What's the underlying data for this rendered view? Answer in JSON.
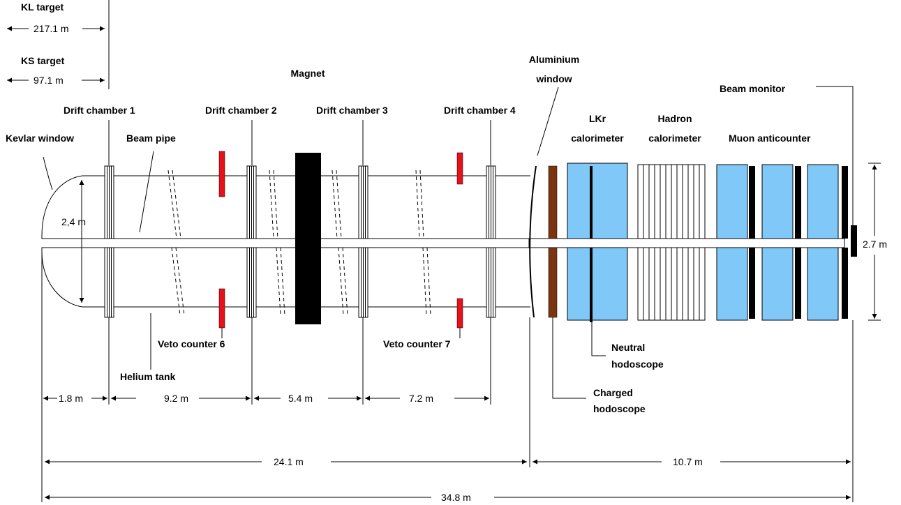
{
  "labels": {
    "kl_target": "KL target",
    "kl_distance": "217.1 m",
    "ks_target": "KS target",
    "ks_distance": "97.1 m",
    "magnet": "Magnet",
    "aluminium_window_1": "Aluminium",
    "aluminium_window_2": "window",
    "beam_monitor": "Beam monitor",
    "drift_chamber_1": "Drift chamber 1",
    "drift_chamber_2": "Drift chamber 2",
    "drift_chamber_3": "Drift chamber 3",
    "drift_chamber_4": "Drift chamber 4",
    "kevlar_window": "Kevlar window",
    "beam_pipe": "Beam pipe",
    "lkr_1": "LKr",
    "lkr_2": "calorimeter",
    "hadron_1": "Hadron",
    "hadron_2": "calorimeter",
    "muon_anticounter": "Muon anticounter",
    "tank_diameter": "2,4 m",
    "detector_height": "2.7 m",
    "veto_counter_6": "Veto counter 6",
    "veto_counter_7": "Veto counter 7",
    "neutral_hodoscope_1": "Neutral",
    "neutral_hodoscope_2": "hodoscope",
    "helium_tank": "Helium tank",
    "charged_hodoscope_1": "Charged",
    "charged_hodoscope_2": "hodoscope"
  },
  "dimensions": {
    "d1": "1.8 m",
    "d2": "9.2 m",
    "d3": "5.4 m",
    "d4": "7.2 m",
    "decay_region": "24.1 m",
    "detector_region": "10.7 m",
    "total": "34.8 m"
  },
  "colors": {
    "veto": "#e8101a",
    "charged_hodoscope": "#7a3410",
    "calorimeter": "#80c8f8",
    "magnet": "#000000"
  }
}
